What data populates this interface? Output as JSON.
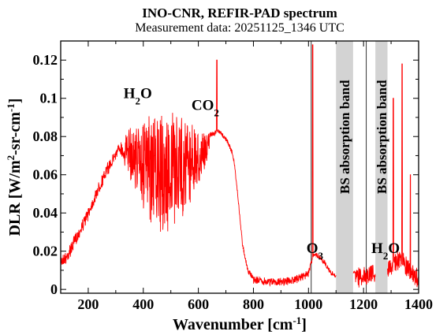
{
  "chart_data": {
    "type": "line",
    "title": "INO-CNR, REFIR-PAD spectrum",
    "subtitle": "Measurement data: 20251125_1346 UTC",
    "xlabel": {
      "main": "Wavenumber [cm",
      "sup": "-1",
      "end": "]"
    },
    "ylabel": {
      "a": "DLR [W/m",
      "sup1": "2",
      "b": "-sr-cm",
      "sup2": "-1",
      "c": "]"
    },
    "xlim": [
      100,
      1400
    ],
    "ylim": [
      -0.002,
      0.13
    ],
    "xticks": [
      200,
      400,
      600,
      800,
      1000,
      1200,
      1400
    ],
    "yticks": [
      0,
      0.02,
      0.04,
      0.06,
      0.08,
      0.1,
      0.12
    ],
    "ytick_labels": [
      "0",
      "0.02",
      "0.04",
      "0.06",
      "0.08",
      "0.1",
      "0.12"
    ],
    "grid": false,
    "colors": {
      "spectrum": "#ff0000",
      "band": "#d3d3d3",
      "axis": "#000000"
    },
    "shaded_bands": [
      {
        "x": [
          1100,
          1162
        ],
        "label": "BS absorption band"
      },
      {
        "x": [
          1243,
          1287
        ],
        "label": "BS absorption band"
      }
    ],
    "vertical_lines": [
      1010,
      1210
    ],
    "annotations": [
      {
        "main": "H",
        "sub": "2",
        "tail": "O",
        "x": 380,
        "y": 0.1
      },
      {
        "main": "CO",
        "sub": "2",
        "tail": "",
        "x": 625,
        "y": 0.094
      },
      {
        "main": "O",
        "sub": "3",
        "tail": "",
        "x": 1023,
        "y": 0.019
      },
      {
        "main": "H",
        "sub": "2",
        "tail": "O",
        "x": 1280,
        "y": 0.019
      }
    ],
    "series": [
      {
        "x": [
          100,
          120,
          140,
          160,
          180,
          200,
          220,
          240,
          260,
          280,
          300,
          320,
          340,
          360,
          380,
          400,
          420,
          440,
          460,
          480,
          500,
          520,
          540,
          560,
          580,
          600,
          620,
          640,
          660,
          670,
          680,
          700,
          720,
          730,
          740,
          750,
          760,
          780,
          800,
          850,
          900,
          950,
          1000,
          1020,
          1040,
          1060,
          1080,
          1100,
          1170,
          1200,
          1240,
          1290,
          1320,
          1340,
          1360,
          1380,
          1400
        ],
        "y": [
          0.018,
          0.02,
          0.025,
          0.031,
          0.037,
          0.043,
          0.05,
          0.057,
          0.063,
          0.069,
          0.074,
          0.078,
          0.082,
          0.084,
          0.086,
          0.087,
          0.088,
          0.089,
          0.089,
          0.09,
          0.09,
          0.09,
          0.089,
          0.088,
          0.086,
          0.082,
          0.08,
          0.082,
          0.083,
          0.084,
          0.083,
          0.08,
          0.074,
          0.068,
          0.055,
          0.04,
          0.025,
          0.011,
          0.007,
          0.006,
          0.006,
          0.007,
          0.01,
          0.02,
          0.018,
          0.015,
          0.01,
          0.008,
          0.01,
          0.012,
          0.014,
          0.016,
          0.02,
          0.02,
          0.016,
          0.012,
          0.01
        ]
      }
    ]
  }
}
